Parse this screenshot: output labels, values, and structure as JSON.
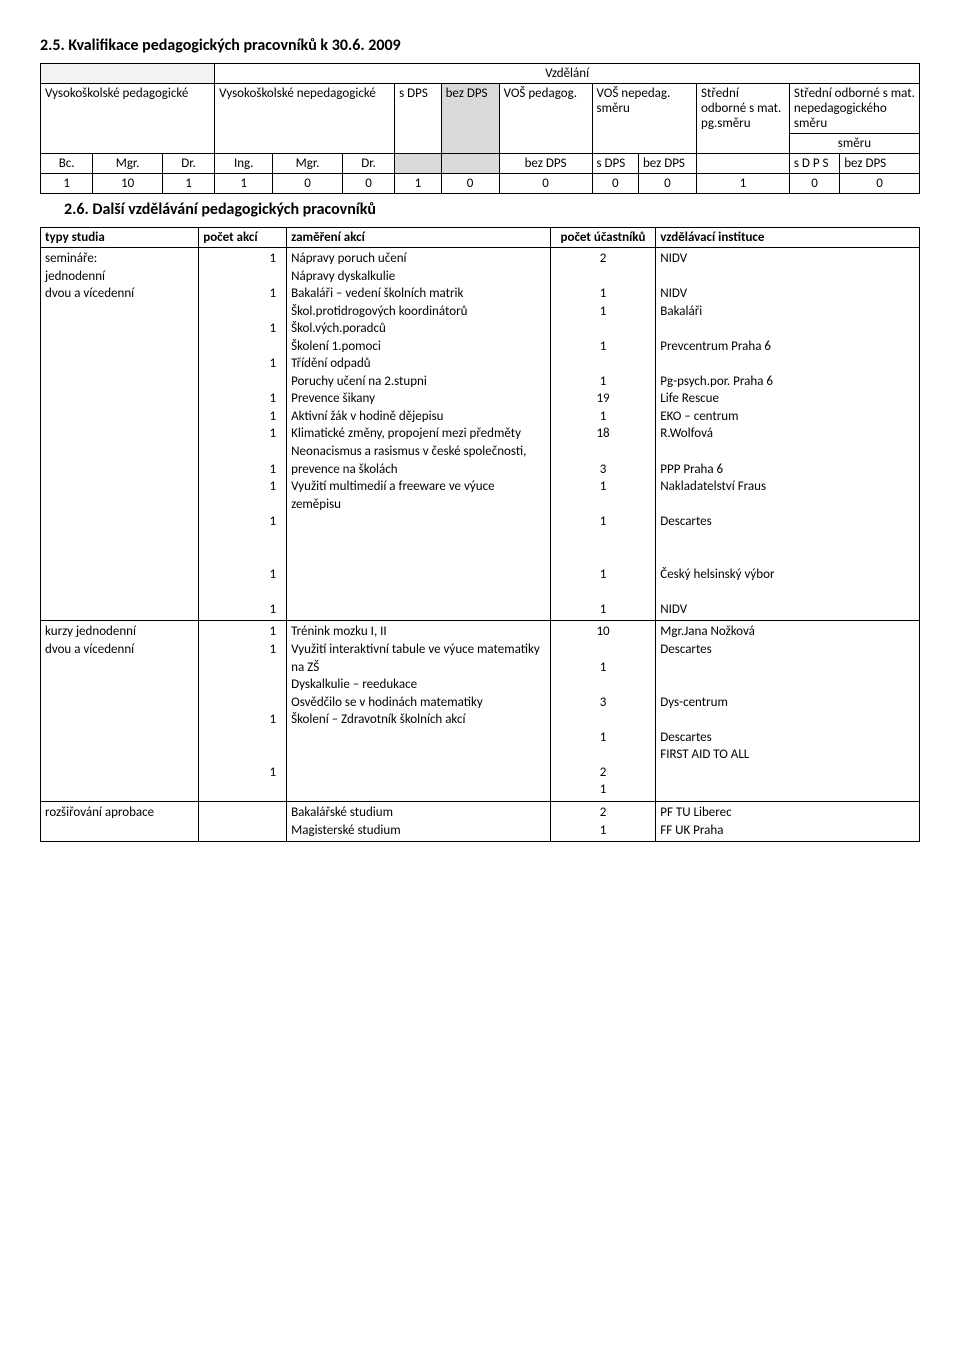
{
  "section25": {
    "heading": "2.5. Kvalifikace pedagogických pracovníků k 30.6. 2009",
    "vzdelani": "Vzdělání",
    "cols": {
      "vs_ped": "Vysokoškolské pedagogické",
      "vs_neped": "Vysokoškolské nepedagogické",
      "s_dps": "s DPS",
      "bez_dps": "bez DPS",
      "vos_ped": "VOŠ pedagog.",
      "vos_neped": "VOŠ nepedag. směru",
      "str_odb_ped": "Střední odborné s mat. pg.směru",
      "str_odb_neped": "Střední odborné s mat. nepedagogického směru",
      "bc": "Bc.",
      "mgr": "Mgr.",
      "dr": "Dr.",
      "ing": "Ing.",
      "bez_dps_full": "bez DPS",
      "sdps_col": "s DPS",
      "bezdps_col": "bez DPS",
      "sdps_col2": "s D P S"
    },
    "values": [
      "1",
      "10",
      "1",
      "1",
      "0",
      "0",
      "1",
      "0",
      "0",
      "0",
      "0",
      "1",
      "0",
      "0"
    ]
  },
  "section26": {
    "heading": "2.6. Další vzdělávání pedagogických pracovníků",
    "headers": {
      "typy": "typy studia",
      "pocet_akci": "počet akcí",
      "zamereni": "zaměření akcí",
      "pocet_uc": "počet účastníků",
      "inst": "vzdělávací instituce"
    },
    "rows": [
      {
        "typ": "semináře:\njednodenní\ndvou a vícedenní",
        "akci": "1\n\n1\n\n1\n\n1\n\n1\n1\n1\n\n1\n1\n\n1\n\n\n1\n\n1",
        "zam": "Nápravy poruch učení\nNápravy dyskalkulie\nBakaláři – vedení školních matrik\nŠkol.protidrogových koordinátorů\nŠkol.vých.poradců\nŠkolení 1.pomoci\nTřídění odpadů\nPoruchy učení na 2.stupni\nPrevence šikany\nAktivní žák v hodině dějepisu\nKlimatické změny, propojení mezi předměty\nNeonacismus a rasismus v české společnosti, prevence na školách\nVyužití multimedií a freeware ve výuce zeměpisu",
        "poc": "2\n\n1\n1\n\n1\n\n1\n19\n1\n18\n\n3\n1\n\n1\n\n\n1\n\n1",
        "inst": "NIDV\n\nNIDV\nBakaláři\n\nPrevcentrum Praha 6\n\nPg-psych.por. Praha 6\nLife Rescue\nEKO – centrum\nR.Wolfová\n\nPPP Praha 6\nNakladatelství Fraus\n\nDescartes\n\n\nČeský helsinský výbor\n\nNIDV"
      },
      {
        "typ": "kurzy jednodenní\ndvou a vícedenní",
        "akci": "1\n1\n\n\n\n1\n\n\n1",
        "zam": "Trénink mozku I, II\n Využití interaktivní tabule ve výuce matematiky na ZŠ\nDyskalkulie – reedukace\nOsvědčilo se v hodinách matematiky\nŠkolení – Zdravotník školních akcí",
        "poc": "10\n\n1\n\n3\n\n1\n\n2\n1",
        "inst": "Mgr.Jana Nožková\nDescartes\n\n\nDys-centrum\n\nDescartes\nFIRST AID TO ALL"
      },
      {
        "typ": "rozšiřování aprobace",
        "akci": "",
        "zam": "Bakalářské studium\nMagisterské studium",
        "poc": "2\n1",
        "inst": "PF TU Liberec\nFF UK Praha"
      }
    ]
  }
}
